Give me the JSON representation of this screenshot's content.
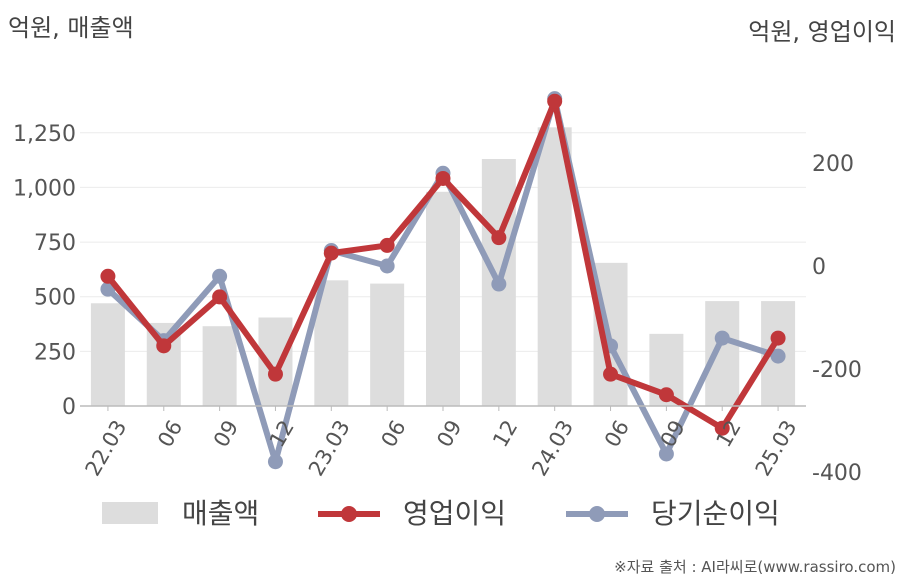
{
  "chart_data": {
    "type": "bar+line",
    "left_axis_unit": "억원, 매출액",
    "right_axis_unit": "억원, 영업이익",
    "categories": [
      "22.03",
      "06",
      "09",
      "12",
      "23.03",
      "06",
      "09",
      "12",
      "24.03",
      "06",
      "09",
      "12",
      "25.03"
    ],
    "left_ticks": [
      "0",
      "250",
      "500",
      "750",
      "1,000",
      "1,250"
    ],
    "right_ticks": [
      "-400",
      "-200",
      "0",
      "200"
    ],
    "ylim_left": [
      0,
      1400
    ],
    "ylim_right": [
      -400,
      400
    ],
    "series": [
      {
        "name": "매출액",
        "type": "bar",
        "axis": "left",
        "color": "#dddddd",
        "values": [
          470,
          380,
          365,
          405,
          575,
          560,
          980,
          1130,
          1275,
          655,
          330,
          480,
          480
        ]
      },
      {
        "name": "영업이익",
        "type": "line",
        "axis": "right",
        "color": "#c0373a",
        "values": [
          -20,
          -155,
          -60,
          -210,
          25,
          40,
          170,
          55,
          320,
          -210,
          -250,
          -315,
          -140
        ]
      },
      {
        "name": "당기순이익",
        "type": "line",
        "axis": "right",
        "color": "#8f9bb8",
        "values": [
          -45,
          -145,
          -20,
          -380,
          30,
          0,
          180,
          -35,
          325,
          -155,
          -365,
          -140,
          -175
        ]
      }
    ],
    "legend": [
      "매출액",
      "영업이익",
      "당기순이익"
    ],
    "legend_position": "bottom",
    "grid": true
  },
  "source_text": "※자료 출처 : AI라씨로(www.rassiro.com)"
}
